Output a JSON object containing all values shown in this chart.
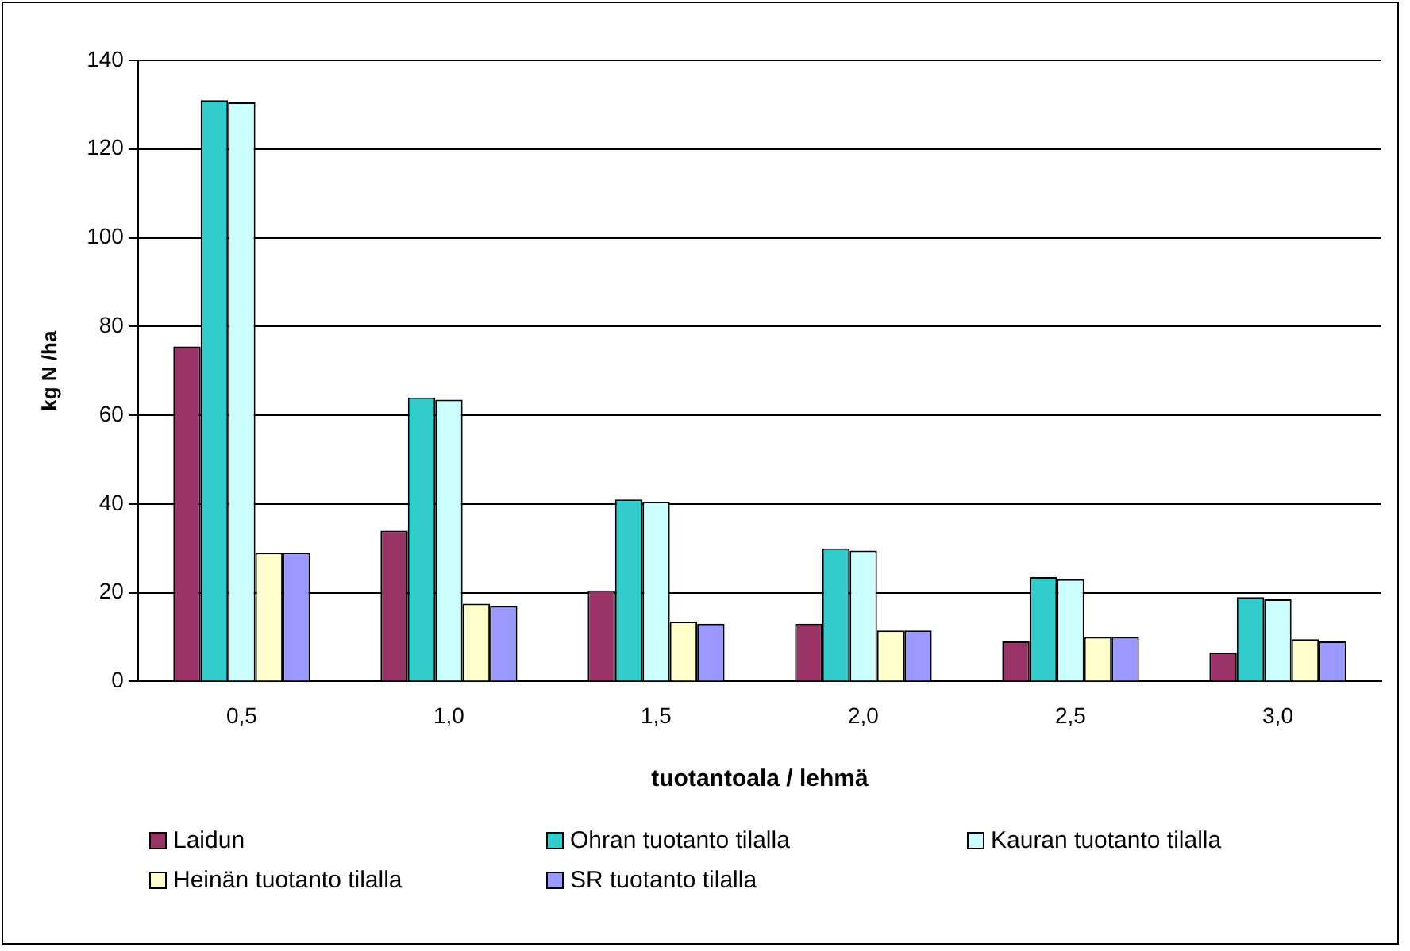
{
  "chart_data": {
    "type": "bar",
    "xlabel": "tuotantoala / lehmä",
    "ylabel": "kg N /ha",
    "categories": [
      "0,5",
      "1,0",
      "1,5",
      "2,0",
      "2,5",
      "3,0"
    ],
    "series": [
      {
        "name": "Laidun",
        "color": "#993366",
        "values": [
          75.5,
          34,
          20.5,
          13,
          9,
          6.5
        ]
      },
      {
        "name": "Ohran tuotanto tilalla",
        "color": "#33cccc",
        "values": [
          131,
          64,
          41,
          30,
          23.5,
          19
        ]
      },
      {
        "name": "Kauran tuotanto tilalla",
        "color": "#ccffff",
        "values": [
          130.5,
          63.5,
          40.5,
          29.5,
          23,
          18.5
        ]
      },
      {
        "name": "Heinän tuotanto tilalla",
        "color": "#ffffcc",
        "values": [
          29,
          17.5,
          13.5,
          11.5,
          10,
          9.5
        ]
      },
      {
        "name": "SR tuotanto tilalla",
        "color": "#9999ff",
        "values": [
          29,
          17,
          13,
          11.5,
          10,
          9
        ]
      }
    ],
    "ylim": [
      0,
      140
    ],
    "yticks": [
      0,
      20,
      40,
      60,
      80,
      100,
      120,
      140
    ],
    "grid": "y",
    "legend": "bottom"
  }
}
